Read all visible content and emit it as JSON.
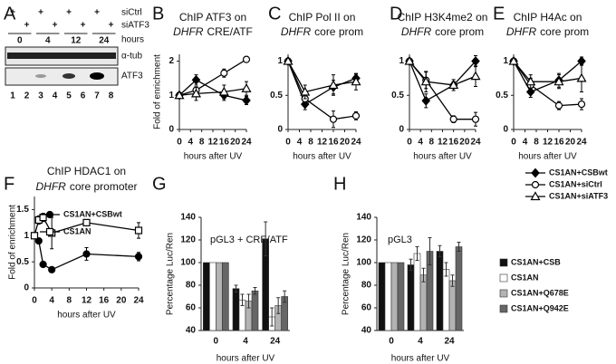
{
  "panel_labels": [
    "A",
    "B",
    "C",
    "D",
    "E",
    "F",
    "G",
    "H"
  ],
  "blot": {
    "rows": [
      {
        "label": "siCtrl",
        "signs": [
          "+",
          null,
          "+",
          null,
          "+",
          null,
          "+",
          null
        ]
      },
      {
        "label": "siATF3",
        "signs": [
          null,
          "+",
          null,
          "+",
          null,
          "+",
          null,
          "+"
        ]
      }
    ],
    "hours_label": "hours",
    "hours": [
      0,
      4,
      12,
      24
    ],
    "bands": [
      "α-tub",
      "ATF3"
    ],
    "lanes": [
      1,
      2,
      3,
      4,
      5,
      6,
      7,
      8
    ]
  },
  "chart_data": [
    {
      "type": "line",
      "title": [
        "ChIP ATF3 on",
        "DHFR",
        "CRE/ATF"
      ],
      "x_label": "hours after UV",
      "y_label": "Fold of enrichment",
      "x": [
        0,
        6,
        16,
        24
      ],
      "xlim": [
        0,
        24
      ],
      "xticks": [
        0,
        4,
        8,
        12,
        16,
        20,
        24
      ],
      "ylim": [
        0,
        2.2
      ],
      "yticks": [
        0,
        1,
        2
      ],
      "series": [
        {
          "name": "CS1AN+CSBwt",
          "marker": "diamond",
          "color": "#000000",
          "fill": "#000000",
          "values": [
            1,
            1.45,
            1.0,
            0.85
          ],
          "errors": [
            null,
            0.15,
            0.15,
            0.12
          ]
        },
        {
          "name": "CS1AN+siCtrl",
          "marker": "circle",
          "color": "#000000",
          "fill": "#ffffff",
          "values": [
            1,
            1.15,
            1.65,
            2.05
          ],
          "errors": [
            null,
            0.1,
            0.12,
            0.05
          ]
        },
        {
          "name": "CS1AN+siATF3",
          "marker": "triangle",
          "color": "#000000",
          "fill": "#ffffff",
          "values": [
            1,
            1.05,
            1.1,
            1.2
          ],
          "errors": [
            null,
            0.2,
            0.2,
            0.2
          ]
        }
      ]
    },
    {
      "type": "line",
      "title": [
        "ChIP Pol II on",
        "DHFR",
        "core prom"
      ],
      "x_label": "hours after UV",
      "x": [
        0,
        6,
        16,
        24
      ],
      "xlim": [
        0,
        24
      ],
      "xticks": [
        0,
        4,
        8,
        12,
        16,
        20,
        24
      ],
      "ylim": [
        0,
        1.1
      ],
      "yticks": [
        0,
        0.5,
        1
      ],
      "series": [
        {
          "marker": "diamond",
          "color": "#000000",
          "fill": "#000000",
          "values": [
            1,
            0.37,
            0.62,
            0.75
          ],
          "errors": [
            null,
            0.08,
            0.1,
            0.06
          ]
        },
        {
          "marker": "circle",
          "color": "#000000",
          "fill": "#ffffff",
          "values": [
            1,
            0.45,
            0.15,
            0.2
          ],
          "errors": [
            null,
            0.1,
            0.12,
            0.06
          ]
        },
        {
          "marker": "triangle",
          "color": "#000000",
          "fill": "#ffffff",
          "values": [
            1,
            0.55,
            0.65,
            0.7
          ],
          "errors": [
            null,
            0.1,
            0.15,
            0.12
          ]
        }
      ]
    },
    {
      "type": "line",
      "title": [
        "ChIP H3K4me2 on",
        "DHFR",
        "core prom"
      ],
      "x_label": "hours after UV",
      "x": [
        0,
        6,
        16,
        24
      ],
      "xlim": [
        0,
        24
      ],
      "xticks": [
        0,
        4,
        8,
        12,
        16,
        20,
        24
      ],
      "ylim": [
        0,
        1.1
      ],
      "yticks": [
        0,
        0.5,
        1
      ],
      "series": [
        {
          "marker": "diamond",
          "color": "#000000",
          "fill": "#000000",
          "values": [
            1,
            0.42,
            0.65,
            1.0
          ],
          "errors": [
            null,
            0.1,
            0.05,
            0.08
          ]
        },
        {
          "marker": "circle",
          "color": "#000000",
          "fill": "#ffffff",
          "values": [
            1,
            0.72,
            0.15,
            0.15
          ],
          "errors": [
            null,
            0.12,
            0.05,
            0.1
          ]
        },
        {
          "marker": "triangle",
          "color": "#000000",
          "fill": "#ffffff",
          "values": [
            1,
            0.7,
            0.65,
            0.78
          ],
          "errors": [
            null,
            0.15,
            0.08,
            0.15
          ]
        }
      ]
    },
    {
      "type": "line",
      "title": [
        "ChIP H4Ac on",
        "DHFR",
        "core prom"
      ],
      "x_label": "hours after UV",
      "x": [
        0,
        6,
        16,
        24
      ],
      "xlim": [
        0,
        24
      ],
      "xticks": [
        0,
        4,
        8,
        12,
        16,
        20,
        24
      ],
      "ylim": [
        0,
        1.1
      ],
      "yticks": [
        0,
        0.5,
        1
      ],
      "series": [
        {
          "marker": "diamond",
          "color": "#000000",
          "fill": "#000000",
          "values": [
            1,
            0.55,
            0.72,
            1.0
          ],
          "errors": [
            null,
            0.08,
            0.1,
            0.06
          ]
        },
        {
          "marker": "circle",
          "color": "#000000",
          "fill": "#ffffff",
          "values": [
            1,
            0.65,
            0.35,
            0.37
          ],
          "errors": [
            null,
            0.1,
            0.06,
            0.08
          ]
        },
        {
          "marker": "triangle",
          "color": "#000000",
          "fill": "#ffffff",
          "values": [
            1,
            0.7,
            0.7,
            0.75
          ],
          "errors": [
            null,
            0.1,
            0.1,
            0.2
          ]
        }
      ]
    },
    {
      "type": "line",
      "title": [
        "ChIP HDAC1 on",
        "DHFR",
        "core promoter"
      ],
      "x_label": "hours after UV",
      "y_label": "Fold of enrichment",
      "x": [
        0,
        1,
        2,
        4,
        12,
        24
      ],
      "xlim": [
        0,
        24
      ],
      "xticks": [
        0,
        4,
        8,
        12,
        16,
        20,
        24
      ],
      "ylim": [
        0,
        1.75
      ],
      "yticks": [
        0,
        0.5,
        1,
        1.5
      ],
      "series": [
        {
          "name": "CS1AN+CSBwt",
          "marker": "circle",
          "color": "#000000",
          "fill": "#000000",
          "values": [
            1,
            0.9,
            0.45,
            0.35,
            0.65,
            0.6
          ],
          "errors": [
            null,
            0.05,
            0.05,
            0.04,
            0.12,
            0.08
          ]
        },
        {
          "name": "CS1AN",
          "marker": "square",
          "color": "#000000",
          "fill": "#ffffff",
          "values": [
            1,
            1.3,
            1.35,
            1.05,
            1.25,
            1.1
          ],
          "errors": [
            null,
            0.08,
            0.08,
            0.3,
            0.05,
            0.15
          ]
        }
      ]
    },
    {
      "type": "bar",
      "title": "pGL3 + CRE/ATF",
      "x_label": "hours after UV",
      "y_label": "Percentage Luc/Ren",
      "categories": [
        "0",
        "4",
        "24"
      ],
      "ylim": [
        40,
        140
      ],
      "yticks": [
        40,
        60,
        80,
        100,
        120,
        140
      ],
      "series": [
        {
          "name": "CS1AN+CSB",
          "color": "#111111",
          "values": [
            100,
            77,
            121
          ],
          "errors": [
            null,
            3,
            15
          ]
        },
        {
          "name": "CS1AN",
          "color": "#ffffff",
          "values": [
            100,
            67,
            52
          ],
          "errors": [
            null,
            5,
            8
          ]
        },
        {
          "name": "CS1AN+Q678E",
          "color": "#b3b3b3",
          "values": [
            100,
            66,
            62
          ],
          "errors": [
            null,
            6,
            7
          ]
        },
        {
          "name": "CS1AN+Q942E",
          "color": "#666666",
          "values": [
            100,
            75,
            70
          ],
          "errors": [
            null,
            3,
            5
          ]
        }
      ]
    },
    {
      "type": "bar",
      "title": "pGL3",
      "x_label": "hours after UV",
      "y_label": "Percentage Luc/Ren",
      "categories": [
        "0",
        "4",
        "24"
      ],
      "ylim": [
        40,
        140
      ],
      "yticks": [
        40,
        60,
        80,
        100,
        120,
        140
      ],
      "series": [
        {
          "color": "#111111",
          "values": [
            100,
            98,
            110
          ],
          "errors": [
            null,
            5,
            5
          ]
        },
        {
          "color": "#ffffff",
          "values": [
            100,
            108,
            94
          ],
          "errors": [
            null,
            6,
            6
          ]
        },
        {
          "color": "#b3b3b3",
          "values": [
            100,
            89,
            84
          ],
          "errors": [
            null,
            6,
            5
          ]
        },
        {
          "color": "#666666",
          "values": [
            100,
            110,
            114
          ],
          "errors": [
            null,
            12,
            4
          ]
        }
      ]
    }
  ]
}
